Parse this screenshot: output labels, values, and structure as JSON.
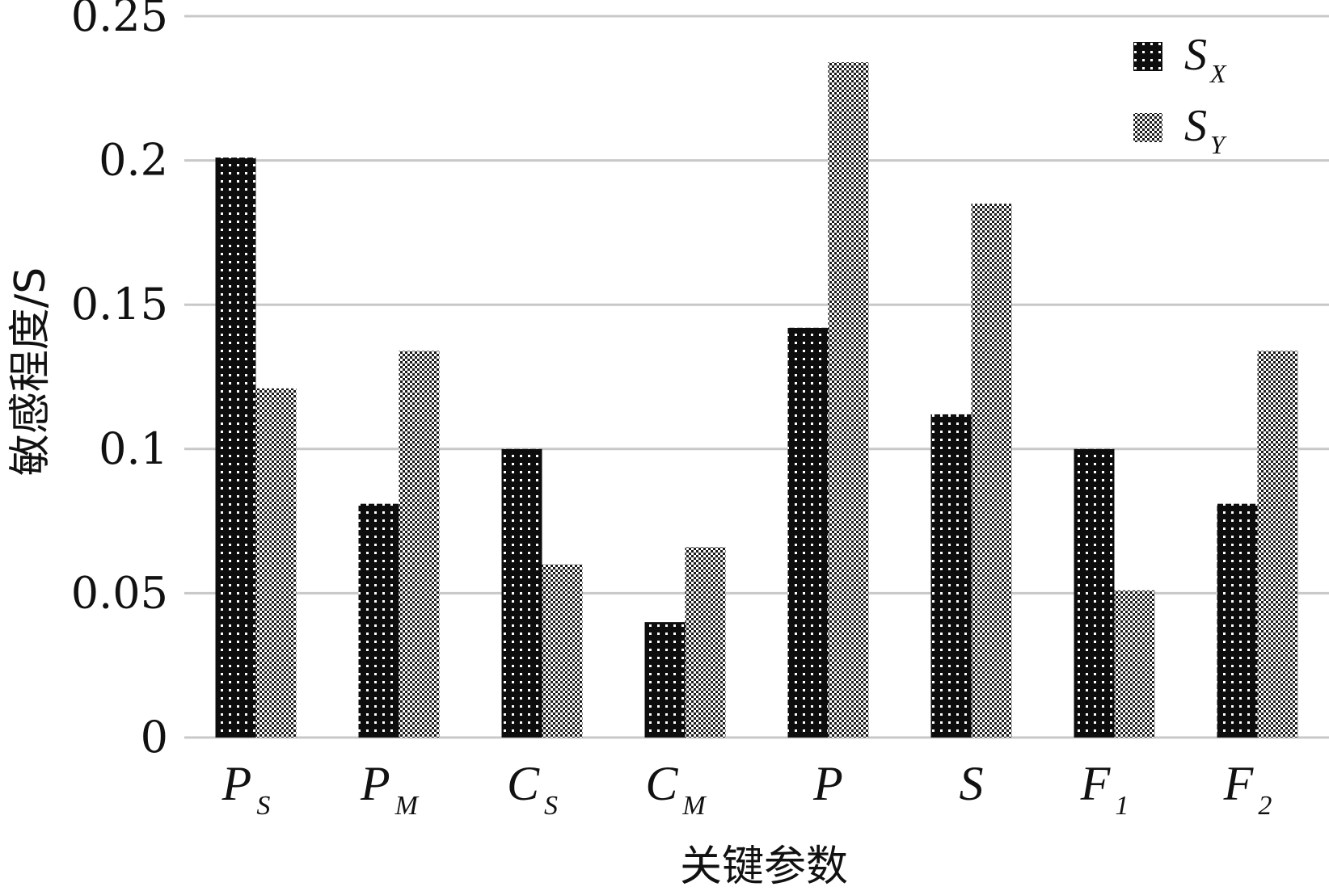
{
  "chart_data": {
    "type": "bar",
    "categories": [
      {
        "main": "P",
        "sub": "S"
      },
      {
        "main": "P",
        "sub": "M"
      },
      {
        "main": "C",
        "sub": "S"
      },
      {
        "main": "C",
        "sub": "M"
      },
      {
        "main": "P",
        "sub": ""
      },
      {
        "main": "S",
        "sub": ""
      },
      {
        "main": "F",
        "sub": "1"
      },
      {
        "main": "F",
        "sub": "2"
      }
    ],
    "series": [
      {
        "name": "S",
        "name_sub": "X",
        "values": [
          0.201,
          0.081,
          0.1,
          0.04,
          0.142,
          0.112,
          0.1,
          0.081
        ]
      },
      {
        "name": "S",
        "name_sub": "Y",
        "values": [
          0.121,
          0.134,
          0.06,
          0.066,
          0.234,
          0.185,
          0.051,
          0.134
        ]
      }
    ],
    "xlabel": "关键参数",
    "ylabel": "敏感程度/S",
    "ylim": [
      0,
      0.25
    ],
    "yticks": [
      "0",
      "0.05",
      "0.1",
      "0.15",
      "0.2",
      "0.25"
    ],
    "grid": true,
    "legend": "top-right",
    "colors": {
      "grid": "#c8c8c8",
      "bar_x": "#111111",
      "bar_y": "#2a2a2a"
    }
  }
}
